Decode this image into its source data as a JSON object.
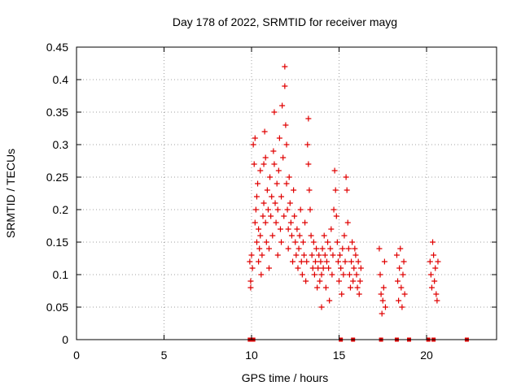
{
  "chart_data": {
    "type": "scatter",
    "title": "Day 178 of 2022, SRMTID for receiver mayg",
    "xlabel": "GPS time / hours",
    "ylabel": "SRMTID / TECUs",
    "xlim": [
      0,
      24
    ],
    "ylim": [
      0,
      0.45
    ],
    "xticks": [
      0,
      5,
      10,
      15,
      20
    ],
    "xtick_labels": [
      "0",
      "5",
      "10",
      "15",
      "20"
    ],
    "yticks": [
      0,
      0.05,
      0.1,
      0.15,
      0.2,
      0.25,
      0.3,
      0.35,
      0.4,
      0.45
    ],
    "ytick_labels": [
      "0",
      "0.05",
      "0.1",
      "0.15",
      "0.2",
      "0.25",
      "0.3",
      "0.35",
      "0.4",
      "0.45"
    ],
    "grid": true,
    "marker": "+",
    "color": "#e00000",
    "zero_markers_x": [
      9.9,
      10.1,
      15.1,
      15.8,
      17.4,
      18.3,
      19.0,
      20.1,
      20.4,
      22.3
    ],
    "series": [
      {
        "name": "SRMTID",
        "points": [
          [
            9.9,
            0.12
          ],
          [
            9.95,
            0.09
          ],
          [
            9.95,
            0.08
          ],
          [
            10.0,
            0.13
          ],
          [
            10.05,
            0.11
          ],
          [
            10.1,
            0.3
          ],
          [
            10.15,
            0.27
          ],
          [
            10.2,
            0.31
          ],
          [
            10.2,
            0.18
          ],
          [
            10.25,
            0.2
          ],
          [
            10.3,
            0.15
          ],
          [
            10.3,
            0.22
          ],
          [
            10.35,
            0.24
          ],
          [
            10.4,
            0.12
          ],
          [
            10.4,
            0.17
          ],
          [
            10.45,
            0.14
          ],
          [
            10.5,
            0.16
          ],
          [
            10.5,
            0.26
          ],
          [
            10.55,
            0.1
          ],
          [
            10.6,
            0.13
          ],
          [
            10.65,
            0.19
          ],
          [
            10.7,
            0.21
          ],
          [
            10.7,
            0.27
          ],
          [
            10.75,
            0.32
          ],
          [
            10.8,
            0.28
          ],
          [
            10.8,
            0.18
          ],
          [
            10.85,
            0.15
          ],
          [
            10.9,
            0.23
          ],
          [
            10.95,
            0.2
          ],
          [
            11.0,
            0.11
          ],
          [
            11.0,
            0.14
          ],
          [
            11.05,
            0.25
          ],
          [
            11.1,
            0.19
          ],
          [
            11.15,
            0.22
          ],
          [
            11.2,
            0.16
          ],
          [
            11.25,
            0.29
          ],
          [
            11.3,
            0.35
          ],
          [
            11.3,
            0.27
          ],
          [
            11.35,
            0.21
          ],
          [
            11.4,
            0.18
          ],
          [
            11.45,
            0.24
          ],
          [
            11.5,
            0.2
          ],
          [
            11.5,
            0.13
          ],
          [
            11.55,
            0.26
          ],
          [
            11.6,
            0.31
          ],
          [
            11.65,
            0.17
          ],
          [
            11.7,
            0.15
          ],
          [
            11.7,
            0.22
          ],
          [
            11.75,
            0.36
          ],
          [
            11.8,
            0.28
          ],
          [
            11.85,
            0.19
          ],
          [
            11.9,
            0.42
          ],
          [
            11.9,
            0.39
          ],
          [
            11.95,
            0.33
          ],
          [
            12.0,
            0.3
          ],
          [
            12.0,
            0.24
          ],
          [
            12.05,
            0.2
          ],
          [
            12.1,
            0.14
          ],
          [
            12.1,
            0.17
          ],
          [
            12.15,
            0.25
          ],
          [
            12.2,
            0.21
          ],
          [
            12.25,
            0.18
          ],
          [
            12.3,
            0.16
          ],
          [
            12.35,
            0.12
          ],
          [
            12.4,
            0.23
          ],
          [
            12.45,
            0.19
          ],
          [
            12.5,
            0.15
          ],
          [
            12.55,
            0.13
          ],
          [
            12.6,
            0.17
          ],
          [
            12.65,
            0.11
          ],
          [
            12.7,
            0.14
          ],
          [
            12.75,
            0.16
          ],
          [
            12.8,
            0.2
          ],
          [
            12.85,
            0.12
          ],
          [
            12.9,
            0.1
          ],
          [
            12.95,
            0.15
          ],
          [
            13.0,
            0.13
          ],
          [
            13.05,
            0.18
          ],
          [
            13.1,
            0.09
          ],
          [
            13.15,
            0.12
          ],
          [
            13.2,
            0.3
          ],
          [
            13.25,
            0.34
          ],
          [
            13.25,
            0.27
          ],
          [
            13.3,
            0.23
          ],
          [
            13.35,
            0.2
          ],
          [
            13.4,
            0.16
          ],
          [
            13.45,
            0.13
          ],
          [
            13.5,
            0.11
          ],
          [
            13.55,
            0.15
          ],
          [
            13.6,
            0.1
          ],
          [
            13.65,
            0.12
          ],
          [
            13.7,
            0.14
          ],
          [
            13.75,
            0.08
          ],
          [
            13.8,
            0.11
          ],
          [
            13.85,
            0.13
          ],
          [
            13.9,
            0.09
          ],
          [
            13.95,
            0.12
          ],
          [
            14.0,
            0.05
          ],
          [
            14.0,
            0.1
          ],
          [
            14.05,
            0.14
          ],
          [
            14.1,
            0.11
          ],
          [
            14.15,
            0.16
          ],
          [
            14.2,
            0.13
          ],
          [
            14.25,
            0.08
          ],
          [
            14.3,
            0.12
          ],
          [
            14.35,
            0.15
          ],
          [
            14.4,
            0.11
          ],
          [
            14.45,
            0.06
          ],
          [
            14.5,
            0.14
          ],
          [
            14.55,
            0.17
          ],
          [
            14.6,
            0.1
          ],
          [
            14.65,
            0.13
          ],
          [
            14.7,
            0.2
          ],
          [
            14.75,
            0.26
          ],
          [
            14.8,
            0.23
          ],
          [
            14.85,
            0.19
          ],
          [
            14.9,
            0.15
          ],
          [
            14.95,
            0.12
          ],
          [
            15.0,
            0.09
          ],
          [
            15.05,
            0.13
          ],
          [
            15.1,
            0.11
          ],
          [
            15.15,
            0.07
          ],
          [
            15.2,
            0.14
          ],
          [
            15.25,
            0.1
          ],
          [
            15.3,
            0.16
          ],
          [
            15.35,
            0.12
          ],
          [
            15.4,
            0.25
          ],
          [
            15.45,
            0.23
          ],
          [
            15.5,
            0.18
          ],
          [
            15.55,
            0.14
          ],
          [
            15.6,
            0.1
          ],
          [
            15.65,
            0.08
          ],
          [
            15.7,
            0.12
          ],
          [
            15.75,
            0.15
          ],
          [
            15.8,
            0.09
          ],
          [
            15.85,
            0.11
          ],
          [
            15.9,
            0.14
          ],
          [
            15.95,
            0.13
          ],
          [
            16.0,
            0.1
          ],
          [
            16.05,
            0.08
          ],
          [
            16.1,
            0.12
          ],
          [
            16.15,
            0.07
          ],
          [
            16.2,
            0.09
          ],
          [
            16.25,
            0.11
          ],
          [
            17.3,
            0.14
          ],
          [
            17.35,
            0.1
          ],
          [
            17.4,
            0.07
          ],
          [
            17.45,
            0.04
          ],
          [
            17.5,
            0.06
          ],
          [
            17.55,
            0.08
          ],
          [
            17.6,
            0.12
          ],
          [
            17.65,
            0.05
          ],
          [
            18.3,
            0.13
          ],
          [
            18.35,
            0.09
          ],
          [
            18.4,
            0.06
          ],
          [
            18.45,
            0.11
          ],
          [
            18.5,
            0.14
          ],
          [
            18.55,
            0.08
          ],
          [
            18.6,
            0.05
          ],
          [
            18.65,
            0.1
          ],
          [
            18.7,
            0.12
          ],
          [
            18.75,
            0.07
          ],
          [
            20.2,
            0.12
          ],
          [
            20.25,
            0.1
          ],
          [
            20.3,
            0.08
          ],
          [
            20.35,
            0.15
          ],
          [
            20.4,
            0.13
          ],
          [
            20.45,
            0.09
          ],
          [
            20.5,
            0.11
          ],
          [
            20.55,
            0.07
          ],
          [
            20.6,
            0.06
          ],
          [
            20.65,
            0.12
          ]
        ]
      }
    ]
  }
}
